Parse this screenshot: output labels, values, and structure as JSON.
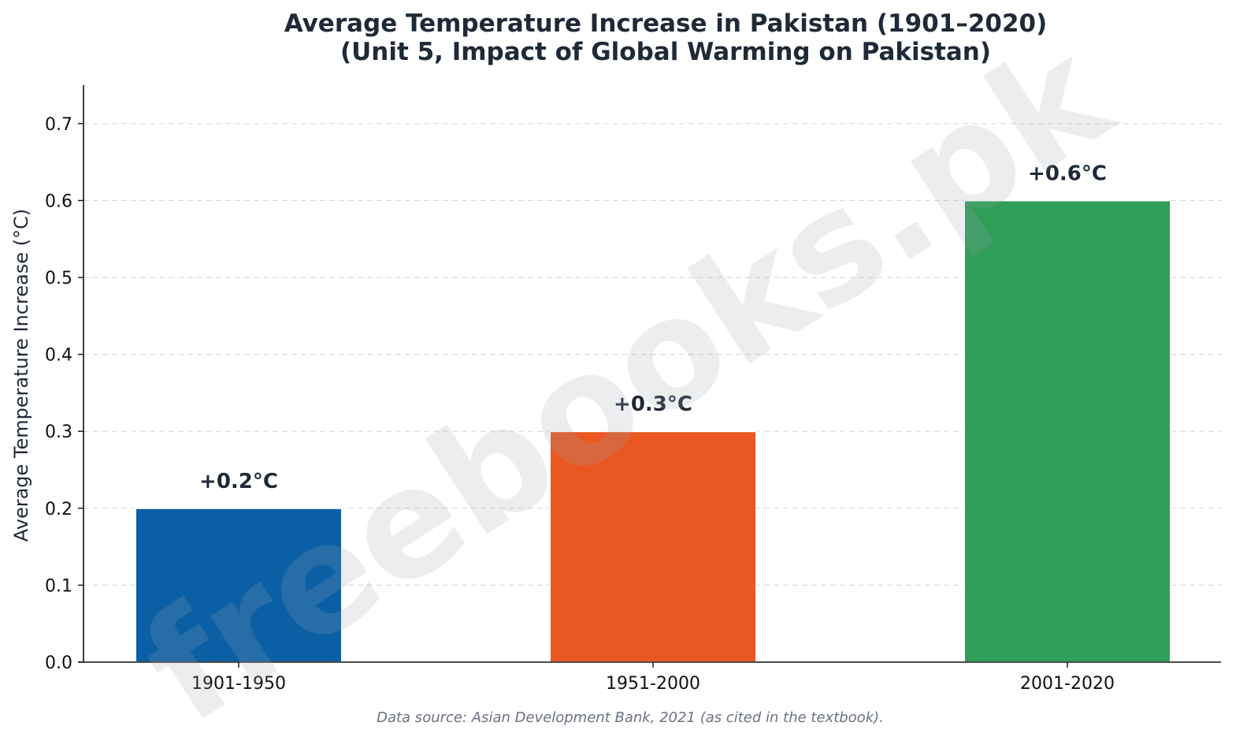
{
  "chart_data": {
    "type": "bar",
    "title": "Average Temperature Increase in Pakistan (1901–2020)",
    "subtitle": "(Unit 5, Impact of Global Warming on Pakistan)",
    "xlabel": "",
    "ylabel": "Average Temperature Increase (°C)",
    "categories": [
      "1901-1950",
      "1951-2000",
      "2001-2020"
    ],
    "values": [
      0.2,
      0.3,
      0.6
    ],
    "data_labels": [
      "+0.2°C",
      "+0.3°C",
      "+0.6°C"
    ],
    "colors": [
      "#0b5fa5",
      "#e95822",
      "#2e9e58"
    ],
    "ylim": [
      0,
      0.75
    ],
    "yticks": [
      0.0,
      0.1,
      0.2,
      0.3,
      0.4,
      0.5,
      0.6,
      0.7
    ],
    "ytick_labels": [
      "0.0",
      "0.1",
      "0.2",
      "0.3",
      "0.4",
      "0.5",
      "0.6",
      "0.7"
    ],
    "grid": "y-dashed",
    "legend": "none",
    "source_note": "Data source: Asian Development Bank, 2021 (as cited in the textbook).",
    "watermark": "freebooks.pk"
  }
}
